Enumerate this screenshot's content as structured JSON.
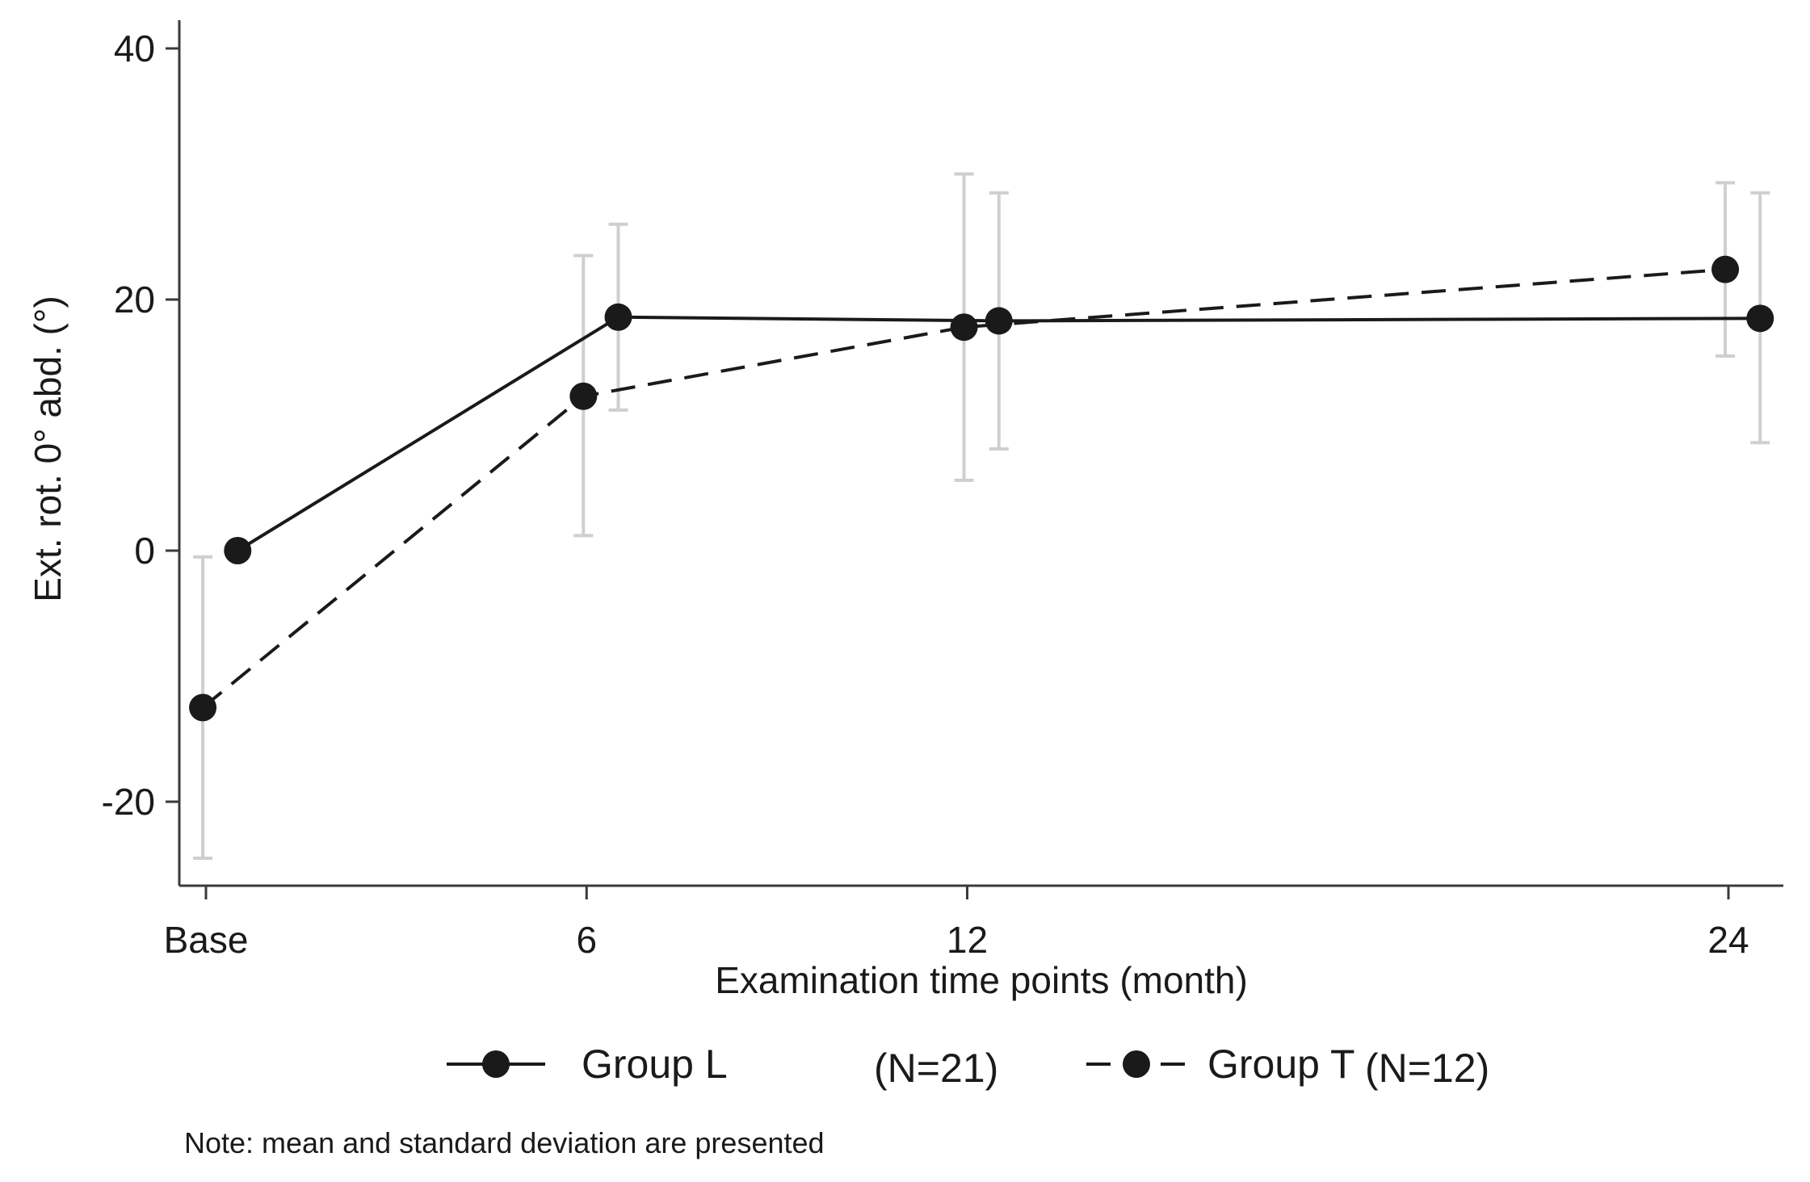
{
  "chart_data": {
    "type": "line",
    "title": "",
    "xlabel": "Examination time points (month)",
    "ylabel": "Ext. rot. 0° abd. (°)",
    "categories": [
      "Base",
      "6",
      "12",
      "24"
    ],
    "x_values": [
      0,
      6,
      12,
      24
    ],
    "ylim": [
      -27,
      42
    ],
    "yticks": [
      40,
      20,
      0,
      -20
    ],
    "grid": false,
    "legend_position": "bottom",
    "series": [
      {
        "name": "Group L",
        "n_label": "(N=21)",
        "line_style": "solid",
        "x_offset": 0.5,
        "means": [
          0,
          18.6,
          18.3,
          18.5
        ],
        "sd_upper": [
          null,
          26,
          28.5,
          28.5
        ],
        "sd_lower": [
          null,
          11.2,
          8.1,
          8.6
        ]
      },
      {
        "name": "Group T",
        "n_label": "(N=12)",
        "line_style": "dashed",
        "x_offset": -0.05,
        "means": [
          -12.5,
          12.3,
          17.8,
          22.4
        ],
        "sd_upper": [
          -0.5,
          23.5,
          30,
          29.3
        ],
        "sd_lower": [
          -24.5,
          1.2,
          5.6,
          15.5
        ]
      }
    ]
  },
  "note": "Note: mean and standard deviation are presented",
  "colors": {
    "line": "#1a1a1a",
    "error_bar": "#cfcfcf",
    "axis": "#3a3a3a"
  }
}
